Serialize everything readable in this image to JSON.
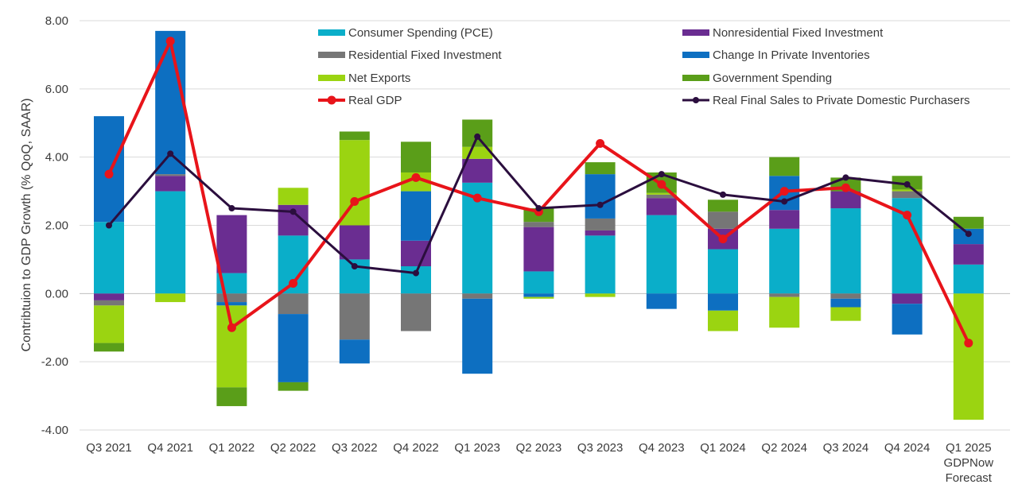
{
  "chart_data": {
    "type": "bar",
    "stacked": true,
    "title": "",
    "xlabel": "",
    "ylabel": "Contribtuion to GDP Growth (% QoQ, SAAR)",
    "ylim": [
      -4,
      8
    ],
    "yticks": [
      "-4.00",
      "-2.00",
      "0.00",
      "2.00",
      "4.00",
      "6.00",
      "8.00"
    ],
    "grid": true,
    "legend_position": "top-right",
    "categories": [
      [
        "Q3 2021"
      ],
      [
        "Q4 2021"
      ],
      [
        "Q1 2022"
      ],
      [
        "Q2 2022"
      ],
      [
        "Q3 2022"
      ],
      [
        "Q4 2022"
      ],
      [
        "Q1 2023"
      ],
      [
        "Q2 2023"
      ],
      [
        "Q3 2023"
      ],
      [
        "Q4 2023"
      ],
      [
        "Q1 2024"
      ],
      [
        "Q2 2024"
      ],
      [
        "Q3 2024"
      ],
      [
        "Q4 2024"
      ],
      [
        "Q1 2025",
        "GDPNow",
        "Forecast"
      ]
    ],
    "series": [
      {
        "name": "Consumer Spending (PCE)",
        "kind": "bar",
        "color": "#0aaec9",
        "values": [
          2.1,
          3.0,
          0.6,
          1.7,
          1.0,
          0.8,
          3.25,
          0.65,
          1.7,
          2.3,
          1.3,
          1.9,
          2.5,
          2.8,
          0.85
        ]
      },
      {
        "name": "Nonresidential Fixed Investment",
        "kind": "bar",
        "color": "#6a2d91",
        "values": [
          -0.2,
          0.45,
          1.7,
          0.9,
          1.0,
          0.75,
          0.7,
          1.3,
          0.15,
          0.5,
          0.6,
          0.55,
          0.5,
          -0.3,
          0.6
        ]
      },
      {
        "name": "Residential Fixed Investment",
        "kind": "bar",
        "color": "#767676",
        "values": [
          -0.15,
          0.05,
          -0.25,
          -0.6,
          -1.35,
          -1.1,
          -0.15,
          0.15,
          0.35,
          0.1,
          0.5,
          -0.1,
          -0.15,
          0.2,
          0.0
        ]
      },
      {
        "name": "Change In Private Inventories",
        "kind": "bar",
        "color": "#0d6fc1",
        "values": [
          3.1,
          4.2,
          -0.1,
          -2.0,
          -0.7,
          1.45,
          -2.2,
          -0.1,
          1.3,
          -0.45,
          -0.5,
          1.0,
          -0.25,
          -0.9,
          0.45
        ]
      },
      {
        "name": "Net Exports",
        "kind": "bar",
        "color": "#9bd411",
        "values": [
          -1.1,
          -0.25,
          -2.4,
          0.5,
          2.5,
          0.55,
          0.35,
          -0.05,
          -0.1,
          0.05,
          -0.6,
          -0.9,
          -0.4,
          0.05,
          -3.7
        ]
      },
      {
        "name": "Government Spending",
        "kind": "bar",
        "color": "#5a9e19",
        "values": [
          -0.25,
          0.0,
          -0.55,
          -0.25,
          0.25,
          0.9,
          0.8,
          0.4,
          0.35,
          0.6,
          0.35,
          0.55,
          0.4,
          0.4,
          0.35
        ]
      },
      {
        "name": "Real GDP",
        "kind": "line",
        "color": "#e8141a",
        "values": [
          3.5,
          7.4,
          -1.0,
          0.3,
          2.7,
          3.4,
          2.8,
          2.4,
          4.4,
          3.2,
          1.6,
          3.0,
          3.1,
          2.3,
          -1.45
        ]
      },
      {
        "name": "Real Final Sales to Private Domestic Purchasers",
        "kind": "line",
        "color": "#2b0e3e",
        "values": [
          2.0,
          4.1,
          2.5,
          2.4,
          0.8,
          0.6,
          4.6,
          2.5,
          2.6,
          3.5,
          2.9,
          2.7,
          3.4,
          3.2,
          1.75
        ]
      }
    ]
  }
}
